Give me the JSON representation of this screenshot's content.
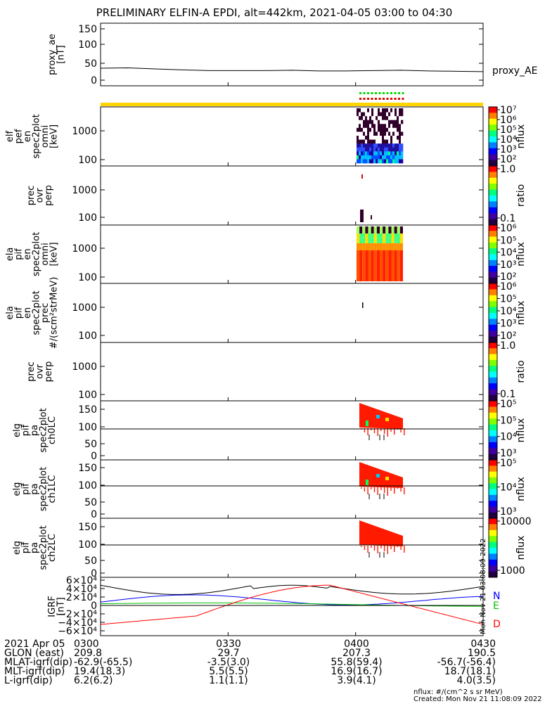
{
  "title": "PRELIMINARY ELFIN-A EPDI, alt=442km, 2021-04-05 03:00 to 04:30",
  "colors": {
    "bar": "#ffd400",
    "marker_green": "#00e000",
    "marker_red": "#e00000",
    "black": "#000000",
    "N": "#0000ff",
    "E": "#00c000",
    "D": "#ff0000"
  },
  "panels": [
    {
      "id": "ae",
      "ylabel": [
        "proxy_ae",
        "[nT]"
      ],
      "ticks": [
        "150",
        "100",
        "50",
        "0"
      ],
      "side_label": "proxy_AE"
    },
    {
      "id": "elf_perp",
      "ylabel": [
        "elf",
        "pef",
        "en",
        "spec2plot",
        "omni",
        "[keV]"
      ],
      "ticks": [
        "1000",
        "100"
      ]
    },
    {
      "id": "prec_e",
      "ylabel": [
        "prec",
        "ovr",
        "perp"
      ],
      "ticks": [
        "1000",
        "100"
      ]
    },
    {
      "id": "pif_omni",
      "ylabel": [
        "ela",
        "pif",
        "en",
        "spec2plot",
        "omni",
        "[keV]"
      ],
      "ticks": [
        "1000",
        "100"
      ]
    },
    {
      "id": "pif_prec",
      "ylabel": [
        "ela",
        "pif",
        "en",
        "spec2plot",
        "prec",
        "#/(scm²strMeV)"
      ],
      "ticks": [
        "1000",
        "100"
      ]
    },
    {
      "id": "prec_i",
      "ylabel": [
        "prec",
        "ovr",
        "perp"
      ],
      "ticks": [
        "1000",
        "100"
      ]
    },
    {
      "id": "pa0",
      "ylabel": [
        "elg",
        "pif",
        "pa",
        "spec2plot",
        "ch0LC"
      ],
      "ticks": [
        "150",
        "100",
        "50",
        "0"
      ]
    },
    {
      "id": "pa1",
      "ylabel": [
        "elg",
        "pif",
        "pa",
        "spec2plot",
        "ch1LC"
      ],
      "ticks": [
        "150",
        "100",
        "50",
        "0"
      ]
    },
    {
      "id": "pa2",
      "ylabel": [
        "elg",
        "pif",
        "pa",
        "spec2plot",
        "ch2LC"
      ],
      "ticks": [
        "150",
        "100",
        "50",
        "0"
      ]
    },
    {
      "id": "igrf",
      "ylabel": [
        "IGRF",
        "[nT]"
      ],
      "ticks": [
        "6×10⁴",
        "4×10⁴",
        "2×10⁴",
        "0",
        "−2×10⁴",
        "−4×10⁴",
        "−6×10⁴"
      ]
    }
  ],
  "colorbars": [
    {
      "id": "cb1",
      "labels": [
        "10⁷",
        "10⁶",
        "10⁵",
        "10⁴",
        "10³",
        "10²"
      ],
      "unit": "nflux"
    },
    {
      "id": "cb2",
      "labels": [
        "1.0",
        "0.1"
      ],
      "unit": "ratio"
    },
    {
      "id": "cb3",
      "labels": [
        "10⁶",
        "10⁵",
        "10⁴",
        "10³",
        "10²"
      ],
      "unit": "nflux"
    },
    {
      "id": "cb4",
      "labels": [
        "10⁶",
        "10⁵",
        "10⁴",
        "10³",
        "10²"
      ],
      "unit": "nflux"
    },
    {
      "id": "cb5",
      "labels": [
        "1.0",
        "0.1"
      ],
      "unit": "ratio"
    },
    {
      "id": "cb6",
      "labels": [
        "10⁵",
        "10⁵",
        "10⁴",
        "10³"
      ],
      "unit": "nflux"
    },
    {
      "id": "cb7",
      "labels": [
        "10⁵",
        "10⁴",
        "10³"
      ],
      "unit": "nflux"
    },
    {
      "id": "cb8",
      "labels": [
        "10000",
        "1000"
      ],
      "unit": "nflux"
    }
  ],
  "igrf_components": [
    "N",
    "E",
    "D"
  ],
  "footer": {
    "rows": [
      {
        "label": "2021 Apr 05",
        "values": [
          "0300",
          "0330",
          "0400",
          "0430"
        ]
      },
      {
        "label": "GLON (east)",
        "values": [
          "209.8",
          "29.7",
          "207.3",
          "190.5"
        ]
      },
      {
        "label": "MLAT-igrf(dip)",
        "values": [
          "-62.9(-65.5)",
          "-3.5(3.0)",
          "55.8(59.4)",
          "-56.7(-56.4)"
        ]
      },
      {
        "label": "MLT-igrf(dip)",
        "values": [
          "19.4(18.3)",
          "5.5(5.5)",
          "16.9(16.7)",
          "18.7(18.1)"
        ]
      },
      {
        "label": "L-igrf(dip)",
        "values": [
          "6.2(6.2)",
          "1.1(1.1)",
          "3.9(4.1)",
          "4.0(3.5)"
        ]
      }
    ],
    "unit_note": "nflux: #/(cm^2 s sr MeV)",
    "created": "Created: Mon Nov 21 11:08:09 2022",
    "side_stamp": "Mon Nov 21 03:08:09 2022"
  },
  "chart_data": {
    "type": "line",
    "x": [
      "0300",
      "0315",
      "0330",
      "0345",
      "0400",
      "0415",
      "0430"
    ],
    "series_ae": [
      35,
      32,
      28,
      28,
      27,
      28,
      25
    ],
    "igrf": {
      "N": [
        10000,
        17000,
        28000,
        2000,
        18000,
        10000,
        10000
      ],
      "E": [
        5000,
        3000,
        8000,
        5000,
        1000,
        0,
        2000
      ],
      "D": [
        -45000,
        -35000,
        30000,
        48000,
        35000,
        -10000,
        -42000
      ],
      "total": [
        48000,
        33000,
        30000,
        48000,
        40000,
        28000,
        45000
      ]
    },
    "ae_ylim": [
      0,
      150
    ]
  }
}
